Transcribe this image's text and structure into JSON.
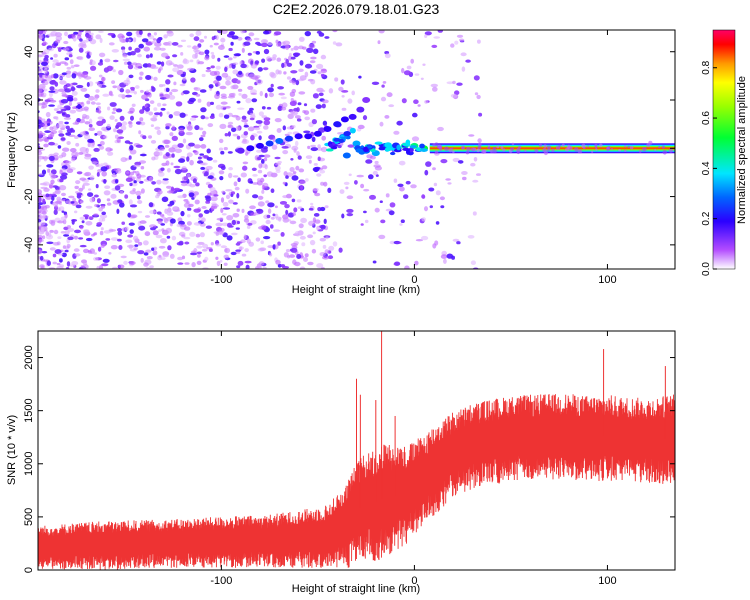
{
  "title": "C2E2.2026.079.18.01.G23",
  "chart_data": [
    {
      "id": "spectrogram",
      "type": "heatmap",
      "xlabel": "Height of straight line (km)",
      "ylabel": "Frequency (Hz)",
      "xlim": [
        -195,
        135
      ],
      "ylim": [
        -50,
        49
      ],
      "xticks": [
        -100,
        0,
        100
      ],
      "yticks": [
        -40,
        -20,
        0,
        20,
        40
      ],
      "colorbar": {
        "label": "Normalized spectral amplitude",
        "range": [
          0,
          0.95
        ],
        "ticks": [
          0.0,
          0.2,
          0.4,
          0.6,
          0.8
        ],
        "tick_labels": [
          "0.0",
          "0.2",
          "0.4",
          "0.6",
          "0.8"
        ]
      },
      "traces": [
        {
          "name": "",
          "points": [
            {
              "x": -90,
              "y": -1,
              "v": 0.15
            },
            {
              "x": -85,
              "y": 0,
              "v": 0.2
            },
            {
              "x": -80,
              "y": 1,
              "v": 0.2
            },
            {
              "x": -75,
              "y": 2,
              "v": 0.25
            },
            {
              "x": -70,
              "y": 3,
              "v": 0.3
            },
            {
              "x": -65,
              "y": 4,
              "v": 0.25
            },
            {
              "x": -60,
              "y": 5,
              "v": 0.2
            },
            {
              "x": -55,
              "y": 5,
              "v": 0.2
            },
            {
              "x": -50,
              "y": 6,
              "v": 0.2
            },
            {
              "x": -45,
              "y": 8,
              "v": 0.2
            },
            {
              "x": -40,
              "y": 10,
              "v": 0.22
            },
            {
              "x": -36,
              "y": 12,
              "v": 0.2
            },
            {
              "x": -32,
              "y": 13,
              "v": 0.18
            },
            {
              "x": -28,
              "y": 16,
              "v": 0.15
            },
            {
              "x": -25,
              "y": 20,
              "v": 0.12
            },
            {
              "x": -35,
              "y": -3,
              "v": 0.3
            },
            {
              "x": -30,
              "y": 2,
              "v": 0.35
            },
            {
              "x": -25,
              "y": -1,
              "v": 0.3
            },
            {
              "x": -20,
              "y": -2,
              "v": 0.35
            },
            {
              "x": -15,
              "y": 1,
              "v": 0.3
            },
            {
              "x": -10,
              "y": 0,
              "v": 0.4
            },
            {
              "x": -5,
              "y": 1,
              "v": 0.45
            },
            {
              "x": 0,
              "y": 1,
              "v": 0.5
            },
            {
              "x": 5,
              "y": 0,
              "v": 0.55
            }
          ]
        },
        {
          "name": "",
          "x": [
            8,
            135
          ],
          "y": [
            0,
            0
          ],
          "v": 0.9
        }
      ]
    },
    {
      "id": "snr",
      "type": "line",
      "xlabel": "Height of straight line (km)",
      "ylabel": "SNR (10 * v/v)",
      "xlim": [
        -195,
        135
      ],
      "ylim": [
        0,
        2250
      ],
      "xticks": [
        -100,
        0,
        100
      ],
      "yticks": [
        0,
        500,
        1000,
        1500,
        2000
      ],
      "color": "#ee3333",
      "series": [
        {
          "name": "",
          "x": [
            -195,
            -180,
            -160,
            -140,
            -120,
            -100,
            -80,
            -60,
            -45,
            -35,
            -30,
            -25,
            -20,
            -15,
            -10,
            -5,
            0,
            10,
            20,
            30,
            40,
            50,
            60,
            70,
            80,
            90,
            100,
            110,
            120,
            135
          ],
          "y": [
            220,
            230,
            240,
            250,
            260,
            270,
            280,
            300,
            330,
            430,
            560,
            620,
            640,
            680,
            700,
            720,
            780,
            950,
            1100,
            1180,
            1220,
            1250,
            1260,
            1270,
            1270,
            1250,
            1260,
            1240,
            1230,
            1240
          ],
          "spread": [
            150,
            160,
            170,
            170,
            170,
            180,
            180,
            200,
            220,
            300,
            350,
            380,
            400,
            400,
            380,
            350,
            330,
            320,
            300,
            300,
            300,
            300,
            300,
            300,
            300,
            300,
            300,
            300,
            300,
            320
          ]
        }
      ],
      "spikes": [
        {
          "x": -30,
          "y": 1800
        },
        {
          "x": -28,
          "y": 1650
        },
        {
          "x": -17,
          "y": 2250
        },
        {
          "x": -20,
          "y": 1600
        },
        {
          "x": -10,
          "y": 1450
        },
        {
          "x": 98,
          "y": 2080
        },
        {
          "x": 130,
          "y": 1920
        }
      ]
    }
  ]
}
